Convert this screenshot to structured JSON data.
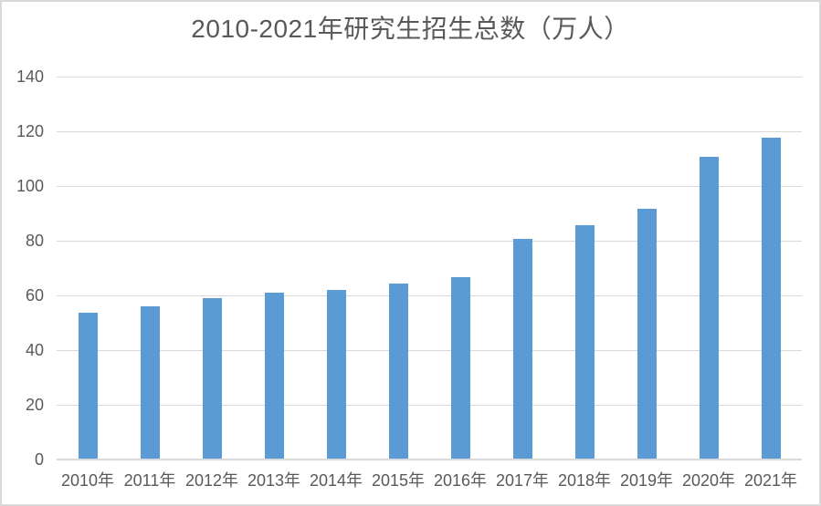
{
  "chart_data": {
    "type": "bar",
    "title": "2010-2021年研究生招生总数（万人）",
    "categories": [
      "2010年",
      "2011年",
      "2012年",
      "2013年",
      "2014年",
      "2015年",
      "2016年",
      "2017年",
      "2018年",
      "2019年",
      "2020年",
      "2021年"
    ],
    "values": [
      53.8,
      56.0,
      59.0,
      61.1,
      62.1,
      64.5,
      66.7,
      80.6,
      85.8,
      91.7,
      110.7,
      117.7
    ],
    "xlabel": "",
    "ylabel": "",
    "ylim": [
      0,
      140
    ],
    "yticks": [
      0,
      20,
      40,
      60,
      80,
      100,
      120,
      140
    ],
    "grid": true,
    "legend": "none",
    "colors": {
      "bar": "#5B9BD5",
      "gridline": "#D9D9D9",
      "axis_line": "#D9D9D9",
      "text": "#595959",
      "frame_border": "#D9D9D9",
      "background": "#FFFFFF"
    }
  }
}
